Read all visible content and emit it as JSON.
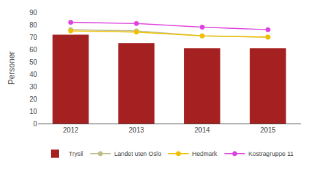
{
  "chart_data": {
    "type": "bar",
    "categories": [
      "2012",
      "2013",
      "2014",
      "2015"
    ],
    "ylabel": "Personer",
    "ylim": [
      0,
      90
    ],
    "yticks": [
      0,
      10,
      20,
      30,
      40,
      50,
      60,
      70,
      80,
      90
    ],
    "grid": false,
    "legend": "bottom",
    "series": [
      {
        "name": "Trysil",
        "type": "bar",
        "color": "#A52020",
        "values": [
          72,
          65,
          61,
          61
        ]
      },
      {
        "name": "Landet uten Oslo",
        "type": "line",
        "marker": "circle",
        "color": "#BFBC8A",
        "values": [
          76,
          75,
          71,
          70
        ]
      },
      {
        "name": "Hedmark",
        "type": "line",
        "marker": "circle",
        "color": "#F0C000",
        "values": [
          75,
          74,
          71,
          70
        ]
      },
      {
        "name": "Kostragruppe 11",
        "type": "line",
        "marker": "circle",
        "color": "#DD44DD",
        "values": [
          82,
          81,
          78,
          76
        ]
      }
    ]
  }
}
